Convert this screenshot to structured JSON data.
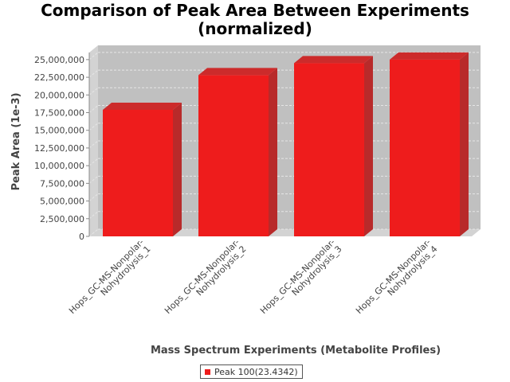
{
  "chart_data": {
    "type": "bar",
    "title": [
      "Comparison of Peak Area Between Experiments",
      "(normalized)"
    ],
    "xlabel": "Mass Spectrum Experiments (Metabolite Profiles)",
    "ylabel": "Peak Area (1e-3)",
    "categories": [
      [
        "Hops_GC-MS-Nonpolar-",
        "Nohydrolysis_1"
      ],
      [
        "Hops_GC-MS-Nonpolar-",
        "Nohydrolysis_2"
      ],
      [
        "Hops_GC-MS-Nonpolar-",
        "Nohydrolysis_3"
      ],
      [
        "Hops_GC-MS-Nonpolar-",
        "Nohydrolysis_4"
      ]
    ],
    "series": [
      {
        "name": "Peak 100(23.4342)",
        "values": [
          17900000,
          22800000,
          24500000,
          25000000
        ],
        "color": "#ee1c1c"
      }
    ],
    "ylim": [
      0,
      26000000
    ],
    "yticks": [
      0,
      2500000,
      5000000,
      7500000,
      10000000,
      12500000,
      15000000,
      17500000,
      20000000,
      22500000,
      25000000
    ],
    "ytick_labels": [
      "0",
      "2,500,000",
      "5,000,000",
      "7,500,000",
      "10,000,000",
      "12,500,000",
      "15,000,000",
      "17,500,000",
      "20,000,000",
      "22,500,000",
      "25,000,000"
    ],
    "grid": true,
    "legend": "bottom",
    "colors": {
      "plot_back": "#c0c0c0",
      "plot_side": "#d3d3d3",
      "bar_side": "#b82a2a",
      "bar_top": "#cc2b2b",
      "grid": "#e6e6e6"
    }
  }
}
